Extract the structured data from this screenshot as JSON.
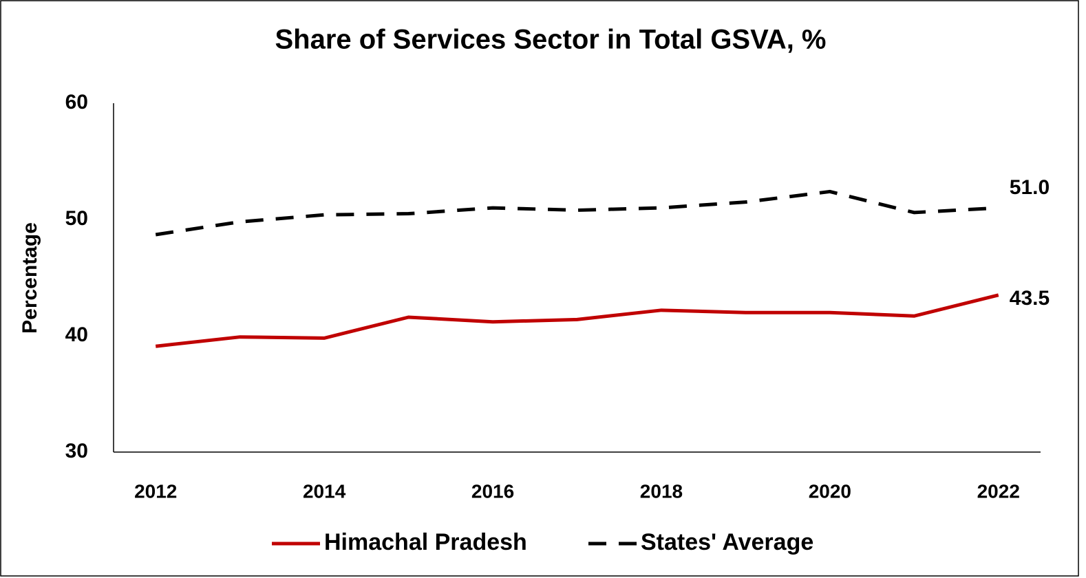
{
  "chart_data": {
    "type": "line",
    "title": "Share of Services Sector in Total GSVA, %",
    "y_label": "Percentage",
    "x": [
      2012,
      2013,
      2014,
      2015,
      2016,
      2017,
      2018,
      2019,
      2020,
      2021,
      2022
    ],
    "xlim": [
      2011.5,
      2022.5
    ],
    "xticks": [
      2012,
      2014,
      2016,
      2018,
      2020,
      2022
    ],
    "ylim": [
      30,
      60
    ],
    "yticks": [
      30,
      40,
      50,
      60
    ],
    "grid": false,
    "legend": "bottom",
    "series": [
      {
        "name": "Himachal Pradesh",
        "color": "#c00000",
        "dash": "solid",
        "values": [
          39.1,
          39.9,
          39.8,
          41.6,
          41.2,
          41.4,
          42.2,
          42.0,
          42.0,
          41.7,
          43.5
        ],
        "value_labels": [
          null,
          null,
          null,
          null,
          null,
          null,
          null,
          null,
          null,
          null,
          "43.5"
        ]
      },
      {
        "name": "States' Average",
        "color": "#000000",
        "dash": "dashed",
        "values": [
          48.7,
          49.8,
          50.4,
          50.5,
          51.0,
          50.8,
          51.0,
          51.5,
          52.4,
          50.6,
          51.0
        ],
        "value_labels": [
          null,
          null,
          null,
          null,
          null,
          null,
          null,
          null,
          null,
          null,
          "51.0"
        ]
      }
    ]
  }
}
